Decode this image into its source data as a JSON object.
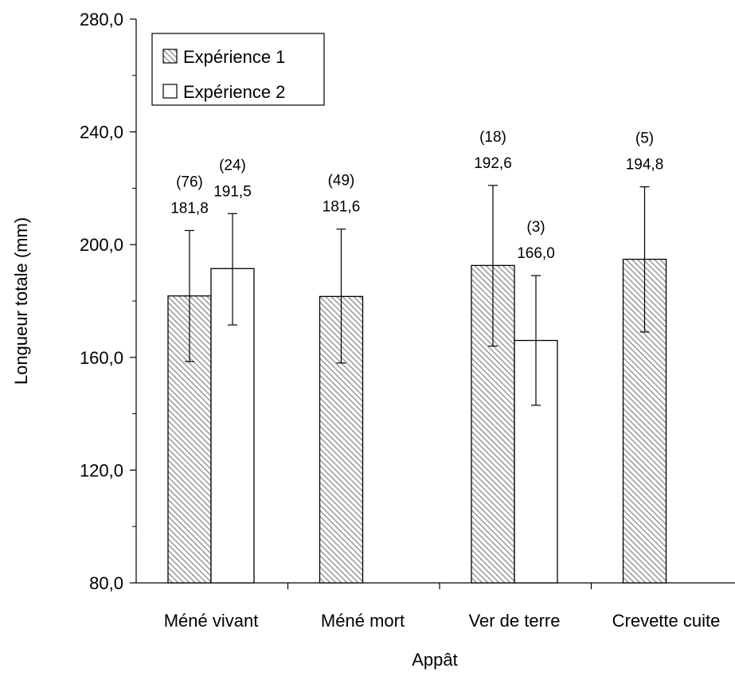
{
  "chart_data": {
    "type": "bar",
    "xlabel": "Appât",
    "ylabel": "Longueur totale (mm)",
    "ylim": [
      80,
      280
    ],
    "yticks": [
      "80,0",
      "120,0",
      "160,0",
      "200,0",
      "240,0",
      "280,0"
    ],
    "categories": [
      "Méné vivant",
      "Méné mort",
      "Ver de terre",
      "Crevette cuite"
    ],
    "series": [
      {
        "name": "Expérience 1",
        "pattern": "diagonal-hatch",
        "values": [
          181.8,
          181.6,
          192.6,
          194.8
        ],
        "error_low": [
          158.5,
          158,
          164,
          169
        ],
        "error_high": [
          205,
          205.5,
          221,
          220.5
        ],
        "labels": [
          "181,8",
          "181,6",
          "192,6",
          "194,8"
        ],
        "counts": [
          "(76)",
          "(49)",
          "(18)",
          "(5)"
        ]
      },
      {
        "name": "Expérience 2",
        "pattern": "white",
        "values": [
          191.5,
          null,
          166.0,
          null
        ],
        "error_low": [
          171.5,
          null,
          143,
          null
        ],
        "error_high": [
          211,
          null,
          189,
          null
        ],
        "labels": [
          "191,5",
          "",
          "166,0",
          ""
        ],
        "counts": [
          "(24)",
          "",
          "(3)",
          ""
        ]
      }
    ],
    "legend_position": "top-left",
    "grid": false,
    "colors": {
      "hatch_stroke": "#8a8a8a",
      "bar_outline": "#000000",
      "background": "#ffffff"
    }
  }
}
